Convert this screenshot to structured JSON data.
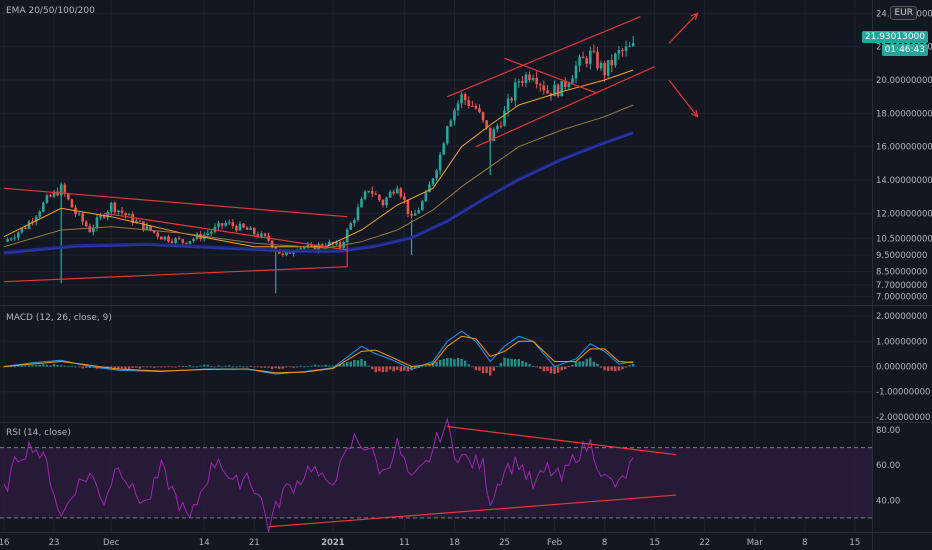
{
  "currency": "EUR",
  "last_price": "21.93013000",
  "countdown": "01:46:43",
  "colors": {
    "bg": "#131722",
    "grid": "#1e2230",
    "up": "#26a69a",
    "down": "#ef5350",
    "ema20": "#f5a623",
    "ema50": "#9c7a3c",
    "ema100": "#1e2a8e",
    "ema200": "#2636a8",
    "trend": "#e53935",
    "macd": "#2196f3",
    "signal": "#ff9800",
    "rsi": "#9c27b0",
    "rsi_band": "#2a1b3a",
    "axis_text": "#b2b5be"
  },
  "chart_data": [
    {
      "type": "candlestick",
      "pane": "price",
      "title": "EMA 20/50/100/200",
      "ylim": [
        6.5,
        24.8
      ],
      "y_ticks": [
        {
          "value": 24.0,
          "label": "24.00000000"
        },
        {
          "value": 22.0,
          "label": "22.00000000"
        },
        {
          "value": 20.0,
          "label": "20.00000000"
        },
        {
          "value": 18.0,
          "label": "18.00000000"
        },
        {
          "value": 16.0,
          "label": "16.00000000"
        },
        {
          "value": 14.0,
          "label": "14.00000000"
        },
        {
          "value": 12.0,
          "label": "12.00000000"
        },
        {
          "value": 10.5,
          "label": "10.50000000"
        },
        {
          "value": 9.5,
          "label": "9.50000000"
        },
        {
          "value": 8.5,
          "label": "8.50000000"
        },
        {
          "value": 7.7,
          "label": "7.70000000"
        },
        {
          "value": 7.0,
          "label": "7.00000000"
        }
      ],
      "x_ticks": [
        {
          "day": 0,
          "label": "16"
        },
        {
          "day": 7,
          "label": "23"
        },
        {
          "day": 15,
          "label": "Dec"
        },
        {
          "day": 28,
          "label": "14"
        },
        {
          "day": 35,
          "label": "21"
        },
        {
          "day": 46,
          "label": "2021"
        },
        {
          "day": 56,
          "label": "11"
        },
        {
          "day": 63,
          "label": "18"
        },
        {
          "day": 70,
          "label": "25"
        },
        {
          "day": 77,
          "label": "Feb"
        },
        {
          "day": 84,
          "label": "8"
        },
        {
          "day": 91,
          "label": "15"
        },
        {
          "day": 98,
          "label": "22"
        },
        {
          "day": 105,
          "label": "Mar"
        },
        {
          "day": 112,
          "label": "8"
        },
        {
          "day": 119,
          "label": "15"
        }
      ],
      "close_path": [
        [
          0,
          10.3
        ],
        [
          3,
          11.2
        ],
        [
          6,
          12.8
        ],
        [
          8,
          13.5
        ],
        [
          10,
          12.0
        ],
        [
          12,
          11.0
        ],
        [
          15,
          12.5
        ],
        [
          18,
          11.6
        ],
        [
          22,
          10.6
        ],
        [
          25,
          10.3
        ],
        [
          28,
          10.7
        ],
        [
          31,
          11.4
        ],
        [
          34,
          11.0
        ],
        [
          37,
          10.4
        ],
        [
          39,
          9.4
        ],
        [
          41,
          10.0
        ],
        [
          43,
          9.9
        ],
        [
          45,
          10.2
        ],
        [
          47,
          10.0
        ],
        [
          49,
          11.8
        ],
        [
          51,
          13.5
        ],
        [
          53,
          12.6
        ],
        [
          55,
          13.8
        ],
        [
          57,
          11.6
        ],
        [
          59,
          13.0
        ],
        [
          61,
          15.5
        ],
        [
          62,
          17.5
        ],
        [
          64,
          19.0
        ],
        [
          66,
          18.3
        ],
        [
          68,
          16.5
        ],
        [
          70,
          18.0
        ],
        [
          72,
          20.0
        ],
        [
          74,
          20.5
        ],
        [
          76,
          19.3
        ],
        [
          78,
          19.5
        ],
        [
          80,
          20.8
        ],
        [
          82,
          21.5
        ],
        [
          84,
          20.5
        ],
        [
          86,
          21.6
        ],
        [
          88,
          21.93
        ]
      ],
      "ema": [
        {
          "name": "EMA 20",
          "points": [
            [
              0,
              10.6
            ],
            [
              8,
              12.3
            ],
            [
              15,
              11.8
            ],
            [
              25,
              10.8
            ],
            [
              35,
              10.0
            ],
            [
              45,
              10.0
            ],
            [
              50,
              11.0
            ],
            [
              55,
              12.5
            ],
            [
              60,
              13.5
            ],
            [
              64,
              16.0
            ],
            [
              68,
              17.3
            ],
            [
              72,
              18.5
            ],
            [
              78,
              19.3
            ],
            [
              84,
              20.0
            ],
            [
              88,
              20.6
            ]
          ]
        },
        {
          "name": "EMA 50",
          "points": [
            [
              0,
              10.0
            ],
            [
              8,
              11.0
            ],
            [
              15,
              11.2
            ],
            [
              25,
              10.8
            ],
            [
              35,
              10.2
            ],
            [
              45,
              9.9
            ],
            [
              50,
              10.3
            ],
            [
              55,
              11.0
            ],
            [
              60,
              12.2
            ],
            [
              64,
              13.6
            ],
            [
              68,
              14.8
            ],
            [
              72,
              16.0
            ],
            [
              78,
              17.0
            ],
            [
              84,
              17.8
            ],
            [
              88,
              18.5
            ]
          ]
        },
        {
          "name": "EMA 100",
          "points": [
            [
              0,
              9.7
            ],
            [
              10,
              10.1
            ],
            [
              20,
              10.2
            ],
            [
              30,
              10.0
            ],
            [
              40,
              9.8
            ],
            [
              47,
              9.8
            ],
            [
              52,
              10.1
            ],
            [
              57,
              10.6
            ],
            [
              62,
              11.6
            ],
            [
              67,
              12.9
            ],
            [
              72,
              14.1
            ],
            [
              78,
              15.3
            ],
            [
              84,
              16.3
            ],
            [
              88,
              16.9
            ]
          ]
        },
        {
          "name": "EMA 200",
          "points": [
            [
              0,
              9.6
            ],
            [
              10,
              10.0
            ],
            [
              20,
              10.1
            ],
            [
              30,
              9.9
            ],
            [
              40,
              9.7
            ],
            [
              47,
              9.7
            ],
            [
              52,
              10.0
            ],
            [
              57,
              10.5
            ],
            [
              62,
              11.5
            ],
            [
              67,
              12.8
            ],
            [
              72,
              14.0
            ],
            [
              78,
              15.2
            ],
            [
              84,
              16.2
            ],
            [
              88,
              16.8
            ]
          ]
        }
      ],
      "spikes": [
        {
          "day": 8,
          "low": 7.8
        },
        {
          "day": 38,
          "low": 7.2
        },
        {
          "day": 57,
          "low": 9.5
        },
        {
          "day": 68,
          "low": 14.3
        }
      ],
      "trendlines": [
        [
          [
            0,
            13.5
          ],
          [
            48,
            11.8
          ]
        ],
        [
          [
            0,
            7.9
          ],
          [
            48,
            8.8
          ]
        ],
        [
          [
            14,
            12.0
          ],
          [
            48,
            9.8
          ]
        ],
        [
          [
            48,
            10.2
          ],
          [
            48,
            8.8
          ]
        ],
        [
          [
            62,
            19.0
          ],
          [
            89,
            23.8
          ]
        ],
        [
          [
            66,
            16.0
          ],
          [
            91,
            20.8
          ]
        ],
        [
          [
            70,
            21.3
          ],
          [
            83,
            19.2
          ]
        ]
      ],
      "arrows": [
        {
          "from": [
            93,
            22.2
          ],
          "to": [
            97,
            24.0
          ]
        },
        {
          "from": [
            93,
            20.0
          ],
          "to": [
            97,
            17.8
          ]
        }
      ]
    },
    {
      "type": "line",
      "pane": "macd",
      "title": "MACD (12, 26, close, 9)",
      "ylim": [
        -2.2,
        2.4
      ],
      "y_ticks": [
        {
          "value": 2.0,
          "label": "2.00000000"
        },
        {
          "value": 1.0,
          "label": "1.00000000"
        },
        {
          "value": 0.0,
          "label": "0.00000000"
        },
        {
          "value": -1.0,
          "label": "-1.00000000"
        },
        {
          "value": -2.0,
          "label": "-2.00000000"
        }
      ],
      "series": [
        {
          "name": "MACD",
          "points": [
            [
              0,
              0.0
            ],
            [
              4,
              0.15
            ],
            [
              8,
              0.25
            ],
            [
              12,
              0.0
            ],
            [
              16,
              -0.15
            ],
            [
              22,
              -0.2
            ],
            [
              28,
              -0.1
            ],
            [
              34,
              -0.1
            ],
            [
              38,
              -0.3
            ],
            [
              42,
              -0.2
            ],
            [
              46,
              -0.05
            ],
            [
              50,
              0.8
            ],
            [
              52,
              0.5
            ],
            [
              54,
              0.3
            ],
            [
              57,
              -0.1
            ],
            [
              60,
              0.2
            ],
            [
              62,
              1.0
            ],
            [
              64,
              1.4
            ],
            [
              66,
              1.0
            ],
            [
              68,
              0.2
            ],
            [
              70,
              0.8
            ],
            [
              72,
              1.2
            ],
            [
              74,
              1.0
            ],
            [
              77,
              0.0
            ],
            [
              80,
              0.3
            ],
            [
              82,
              0.9
            ],
            [
              84,
              0.6
            ],
            [
              86,
              0.1
            ],
            [
              88,
              0.2
            ]
          ]
        },
        {
          "name": "Signal",
          "points": [
            [
              0,
              0.0
            ],
            [
              4,
              0.1
            ],
            [
              8,
              0.2
            ],
            [
              12,
              0.05
            ],
            [
              16,
              -0.1
            ],
            [
              22,
              -0.18
            ],
            [
              28,
              -0.12
            ],
            [
              34,
              -0.1
            ],
            [
              38,
              -0.25
            ],
            [
              42,
              -0.22
            ],
            [
              46,
              -0.08
            ],
            [
              50,
              0.6
            ],
            [
              52,
              0.65
            ],
            [
              54,
              0.4
            ],
            [
              57,
              0.0
            ],
            [
              60,
              0.1
            ],
            [
              62,
              0.8
            ],
            [
              64,
              1.2
            ],
            [
              66,
              1.1
            ],
            [
              68,
              0.4
            ],
            [
              70,
              0.6
            ],
            [
              72,
              1.0
            ],
            [
              74,
              1.0
            ],
            [
              77,
              0.2
            ],
            [
              80,
              0.2
            ],
            [
              82,
              0.7
            ],
            [
              84,
              0.7
            ],
            [
              86,
              0.2
            ],
            [
              88,
              0.15
            ]
          ]
        }
      ]
    },
    {
      "type": "line",
      "pane": "rsi",
      "title": "RSI (14, close)",
      "ylim": [
        22,
        84
      ],
      "upper_band": 70,
      "lower_band": 30,
      "y_ticks": [
        {
          "value": 80,
          "label": "80.00"
        },
        {
          "value": 60,
          "label": "60.00"
        },
        {
          "value": 40,
          "label": "40.00"
        }
      ],
      "series": [
        {
          "name": "RSI",
          "points": [
            [
              0,
              45
            ],
            [
              2,
              65
            ],
            [
              4,
              72
            ],
            [
              6,
              60
            ],
            [
              8,
              30
            ],
            [
              10,
              48
            ],
            [
              12,
              55
            ],
            [
              14,
              40
            ],
            [
              16,
              62
            ],
            [
              18,
              45
            ],
            [
              20,
              38
            ],
            [
              22,
              58
            ],
            [
              24,
              42
            ],
            [
              26,
              28
            ],
            [
              28,
              50
            ],
            [
              30,
              65
            ],
            [
              32,
              48
            ],
            [
              34,
              55
            ],
            [
              36,
              40
            ],
            [
              37,
              25
            ],
            [
              39,
              45
            ],
            [
              41,
              50
            ],
            [
              43,
              60
            ],
            [
              45,
              48
            ],
            [
              47,
              58
            ],
            [
              49,
              75
            ],
            [
              51,
              70
            ],
            [
              53,
              55
            ],
            [
              55,
              72
            ],
            [
              57,
              50
            ],
            [
              59,
              60
            ],
            [
              61,
              78
            ],
            [
              62,
              82
            ],
            [
              63,
              68
            ],
            [
              65,
              62
            ],
            [
              67,
              60
            ],
            [
              68,
              40
            ],
            [
              70,
              58
            ],
            [
              72,
              62
            ],
            [
              74,
              48
            ],
            [
              76,
              58
            ],
            [
              78,
              52
            ],
            [
              80,
              66
            ],
            [
              82,
              72
            ],
            [
              84,
              52
            ],
            [
              86,
              48
            ],
            [
              88,
              62
            ]
          ]
        }
      ],
      "trendlines": [
        [
          [
            62,
            82
          ],
          [
            94,
            66
          ]
        ],
        [
          [
            37,
            25
          ],
          [
            94,
            43
          ]
        ]
      ]
    }
  ]
}
